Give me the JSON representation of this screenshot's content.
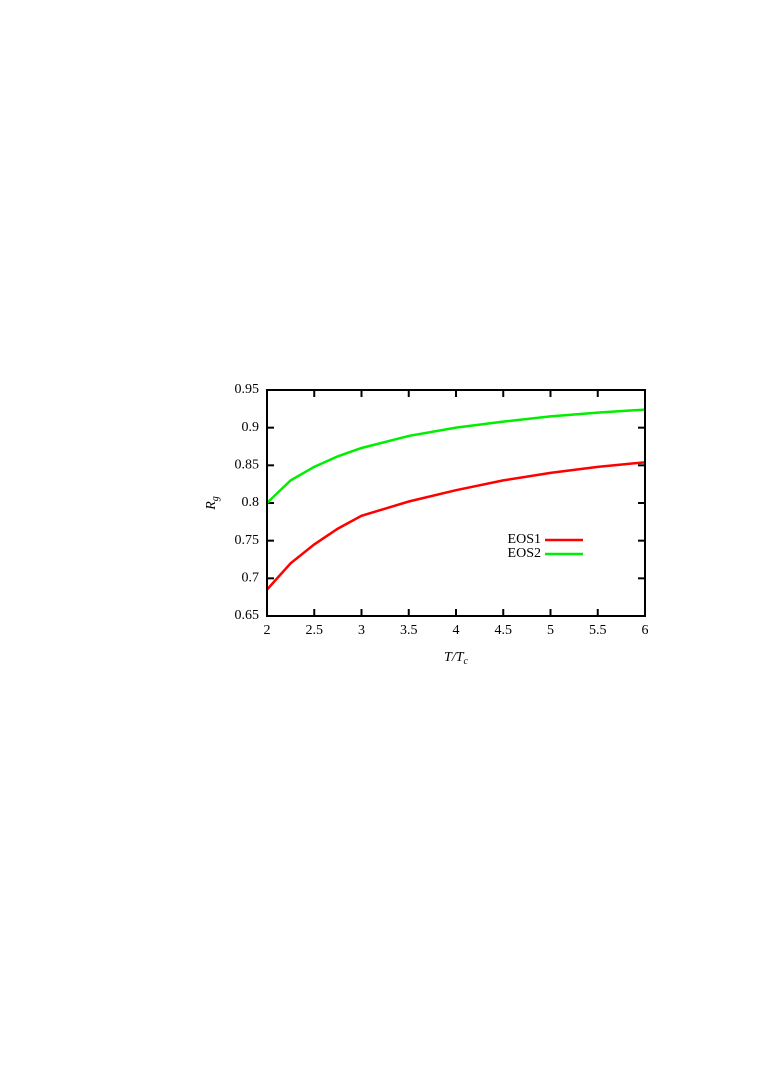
{
  "chart_data": {
    "type": "line",
    "x_label": {
      "main": "T/T",
      "sub": "c"
    },
    "y_label": {
      "main": "R",
      "sub": "g"
    },
    "x": [
      2,
      2.25,
      2.5,
      2.75,
      3,
      3.5,
      4,
      4.5,
      5,
      5.5,
      6
    ],
    "series": [
      {
        "name": "EOS1",
        "color": "#ff0000",
        "values": [
          0.685,
          0.72,
          0.745,
          0.766,
          0.783,
          0.802,
          0.817,
          0.83,
          0.84,
          0.848,
          0.854
        ]
      },
      {
        "name": "EOS2",
        "color": "#00ee00",
        "values": [
          0.8,
          0.83,
          0.848,
          0.862,
          0.873,
          0.889,
          0.9,
          0.908,
          0.915,
          0.92,
          0.924
        ]
      }
    ],
    "xlim": [
      2,
      6
    ],
    "ylim": [
      0.65,
      0.95
    ],
    "xticks": [
      2,
      2.5,
      3,
      3.5,
      4,
      4.5,
      5,
      5.5,
      6
    ],
    "yticks": [
      0.65,
      0.7,
      0.75,
      0.8,
      0.85,
      0.9,
      0.95
    ],
    "legend": "right"
  }
}
